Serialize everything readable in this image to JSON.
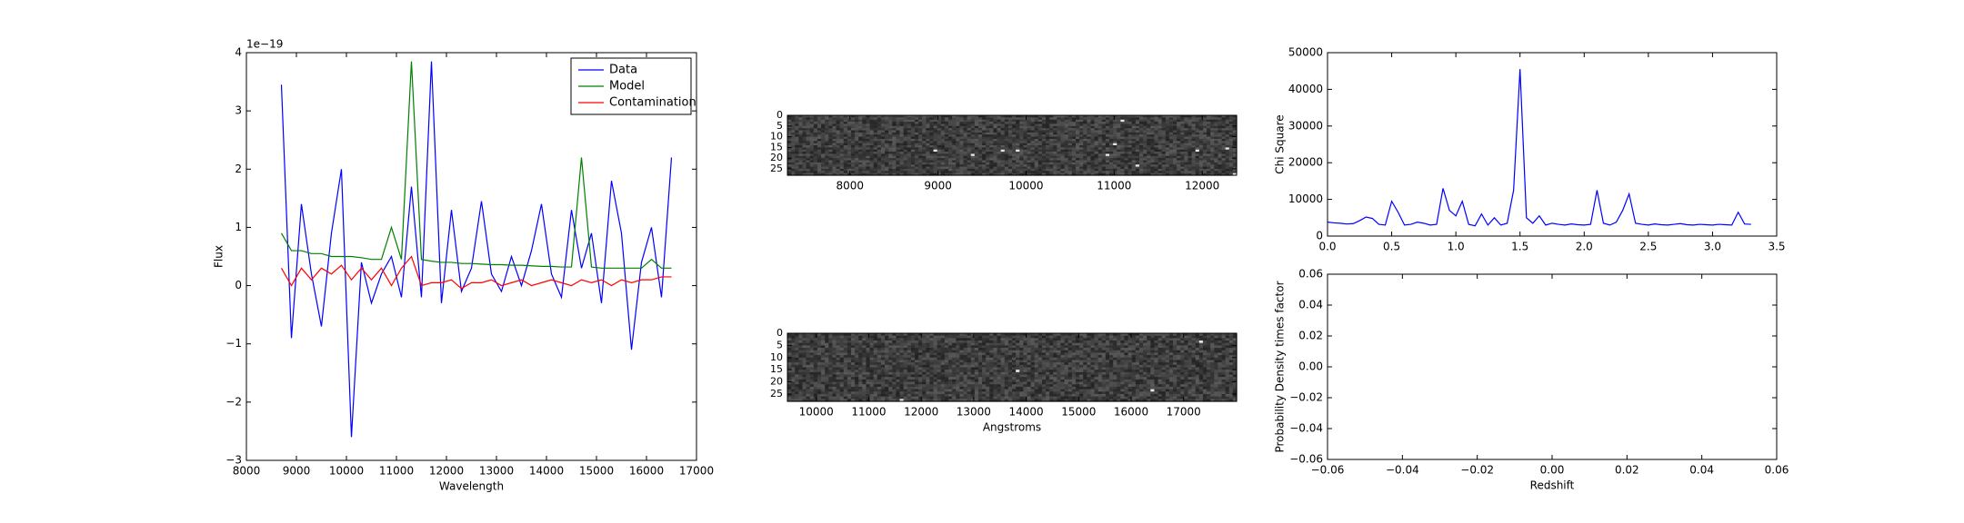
{
  "chart_data": [
    {
      "type": "line",
      "xlabel": "Wavelength",
      "ylabel": "Flux",
      "offset_text": "1e−19",
      "legend": "upper right",
      "x": [
        8700,
        8900,
        9100,
        9300,
        9500,
        9700,
        9900,
        10100,
        10300,
        10500,
        10700,
        10900,
        11100,
        11300,
        11500,
        11700,
        11900,
        12100,
        12300,
        12500,
        12700,
        12900,
        13100,
        13300,
        13500,
        13700,
        13900,
        14100,
        14300,
        14500,
        14700,
        14900,
        15100,
        15300,
        15500,
        15700,
        15900,
        16100,
        16300,
        16500
      ],
      "series": [
        {
          "name": "Data",
          "color": "#0000ff",
          "values": [
            3.45,
            -0.9,
            1.4,
            0.2,
            -0.7,
            0.9,
            2.0,
            -2.6,
            0.4,
            -0.3,
            0.2,
            0.5,
            -0.2,
            1.7,
            -0.2,
            3.85,
            -0.3,
            1.3,
            -0.1,
            0.3,
            1.45,
            0.2,
            -0.1,
            0.5,
            0.0,
            0.6,
            1.4,
            0.2,
            -0.2,
            1.3,
            0.3,
            0.9,
            -0.3,
            1.8,
            0.9,
            -1.1,
            0.4,
            1.0,
            -0.2,
            2.2
          ]
        },
        {
          "name": "Model",
          "color": "#008000",
          "values": [
            0.9,
            0.6,
            0.6,
            0.55,
            0.55,
            0.5,
            0.5,
            0.5,
            0.48,
            0.45,
            0.45,
            1.0,
            0.45,
            3.85,
            0.45,
            0.42,
            0.4,
            0.4,
            0.38,
            0.38,
            0.37,
            0.36,
            0.36,
            0.35,
            0.35,
            0.34,
            0.33,
            0.33,
            0.32,
            0.32,
            2.2,
            0.32,
            0.3,
            0.3,
            0.3,
            0.3,
            0.3,
            0.45,
            0.3,
            0.3
          ]
        },
        {
          "name": "Contamination",
          "color": "#ff0000",
          "values": [
            0.3,
            0.0,
            0.3,
            0.1,
            0.3,
            0.2,
            0.35,
            0.1,
            0.3,
            0.1,
            0.3,
            0.0,
            0.3,
            0.5,
            0.0,
            0.05,
            0.05,
            0.1,
            -0.05,
            0.05,
            0.05,
            0.1,
            0.0,
            0.05,
            0.1,
            0.0,
            0.05,
            0.1,
            0.05,
            0.0,
            0.1,
            0.05,
            0.1,
            0.0,
            0.1,
            0.05,
            0.1,
            0.1,
            0.15,
            0.15
          ]
        }
      ],
      "xlim": [
        8000,
        17000
      ],
      "ylim": [
        -3,
        4
      ],
      "xticks": [
        8000,
        9000,
        10000,
        11000,
        12000,
        13000,
        14000,
        15000,
        16000,
        17000
      ],
      "yticks": [
        {
          "value": -3,
          "label": "−3"
        },
        {
          "value": -2,
          "label": "−2"
        },
        {
          "value": -1,
          "label": "−1"
        },
        0,
        1,
        2,
        3,
        4
      ]
    },
    {
      "type": "image",
      "xlim": [
        7290,
        12390
      ],
      "ylim": [
        0,
        28
      ],
      "xticks": [
        8000,
        9000,
        10000,
        11000,
        12000
      ],
      "yticks": [
        0,
        5,
        10,
        15,
        20,
        25
      ]
    },
    {
      "type": "image",
      "xlabel": "Angstroms",
      "xlim": [
        9450,
        18010
      ],
      "ylim": [
        0,
        28
      ],
      "xticks": [
        10000,
        11000,
        12000,
        13000,
        14000,
        15000,
        16000,
        17000
      ],
      "yticks": [
        0,
        5,
        10,
        15,
        20,
        25
      ]
    },
    {
      "type": "line",
      "ylabel": "Chi Square",
      "x": [
        0,
        0.05,
        0.1,
        0.15,
        0.2,
        0.25,
        0.3,
        0.35,
        0.4,
        0.45,
        0.5,
        0.55,
        0.6,
        0.65,
        0.7,
        0.75,
        0.8,
        0.85,
        0.9,
        0.95,
        1,
        1.05,
        1.1,
        1.15,
        1.2,
        1.25,
        1.3,
        1.35,
        1.4,
        1.45,
        1.5,
        1.55,
        1.6,
        1.65,
        1.7,
        1.75,
        1.8,
        1.85,
        1.9,
        1.95,
        2,
        2.05,
        2.1,
        2.15,
        2.2,
        2.25,
        2.3,
        2.35,
        2.4,
        2.45,
        2.5,
        2.55,
        2.6,
        2.65,
        2.7,
        2.75,
        2.8,
        2.85,
        2.9,
        2.95,
        3,
        3.05,
        3.1,
        3.15,
        3.2,
        3.25,
        3.3
      ],
      "series": [
        {
          "color": "#0000ff",
          "values": [
            3800,
            3600,
            3500,
            3300,
            3400,
            4200,
            5200,
            4800,
            3200,
            3000,
            9500,
            6500,
            3000,
            3200,
            3800,
            3500,
            3000,
            3200,
            13000,
            7000,
            5500,
            9500,
            3200,
            2800,
            6000,
            3000,
            5000,
            3000,
            3500,
            12500,
            45500,
            5000,
            3500,
            5500,
            3000,
            3500,
            3200,
            3000,
            3300,
            3100,
            3000,
            3200,
            12500,
            3500,
            3000,
            3800,
            7000,
            11500,
            3500,
            3200,
            3000,
            3300,
            3100,
            3000,
            3200,
            3400,
            3100,
            3000,
            3200,
            3100,
            3000,
            3200,
            3100,
            3000,
            6500,
            3300,
            3200
          ]
        }
      ],
      "xlim": [
        0,
        3.5
      ],
      "ylim": [
        0,
        50000
      ],
      "xticks": [
        {
          "value": 0,
          "label": "0.0"
        },
        0.5,
        {
          "value": 1,
          "label": "1.0"
        },
        1.5,
        {
          "value": 2,
          "label": "2.0"
        },
        2.5,
        {
          "value": 3,
          "label": "3.0"
        },
        3.5
      ],
      "yticks": [
        0,
        10000,
        20000,
        30000,
        40000,
        50000
      ]
    },
    {
      "type": "line",
      "xlabel": "Redshift",
      "ylabel": "Probability Density times factor",
      "series": [],
      "xlim": [
        -0.06,
        0.06
      ],
      "ylim": [
        -0.06,
        0.06
      ],
      "xticks": [
        {
          "value": -0.06,
          "label": "−0.06"
        },
        {
          "value": -0.04,
          "label": "−0.04"
        },
        {
          "value": -0.02,
          "label": "−0.02"
        },
        {
          "value": 0,
          "label": "0.00"
        },
        0.02,
        0.04,
        0.06
      ],
      "yticks": [
        {
          "value": -0.06,
          "label": "−0.06"
        },
        {
          "value": -0.04,
          "label": "−0.04"
        },
        {
          "value": -0.02,
          "label": "−0.02"
        },
        {
          "value": 0,
          "label": "0.00"
        },
        0.02,
        0.04,
        0.06
      ]
    }
  ]
}
